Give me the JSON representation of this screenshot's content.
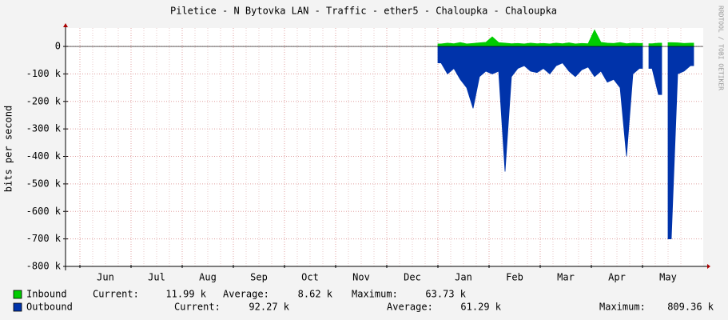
{
  "chart_data": {
    "type": "area",
    "title": "Piletice - N Bytovka LAN - Traffic - ether5 - Chaloupka - Chaloupka",
    "y_label": "bits per second",
    "watermark": "RRDTOOL / TOBI OETIKER",
    "categories": [
      "Jun",
      "Jul",
      "Aug",
      "Sep",
      "Oct",
      "Nov",
      "Dec",
      "Jan",
      "Feb",
      "Mar",
      "Apr",
      "May"
    ],
    "ylim": [
      -800000,
      67000
    ],
    "yticks": [
      0,
      {
        "value": -100000,
        "label": "-100 k"
      },
      {
        "value": -200000,
        "label": "-200 k"
      },
      {
        "value": -300000,
        "label": "-300 k"
      },
      {
        "value": -400000,
        "label": "-400 k"
      },
      {
        "value": -500000,
        "label": "-500 k"
      },
      {
        "value": -600000,
        "label": "-600 k"
      },
      {
        "value": -700000,
        "label": "-700 k"
      },
      {
        "value": -800000,
        "label": "-800 k"
      }
    ],
    "grid": true,
    "series": [
      {
        "name": "Inbound",
        "color": "#00cc00",
        "values": [
          null,
          null,
          null,
          null,
          null,
          null,
          null,
          [
            9000,
            12000,
            10000,
            14000,
            9000,
            11000,
            13000,
            15000
          ],
          [
            35000,
            14000,
            12000,
            10000,
            11000,
            9000,
            12000,
            10000
          ],
          [
            11000,
            9000,
            12000,
            10000,
            13000,
            9000,
            11000,
            10000
          ],
          [
            60000,
            15000,
            12000,
            11000,
            14000,
            10000,
            12000,
            11000
          ],
          [
            null,
            10000,
            12000,
            null,
            14000,
            13000,
            11000,
            12000
          ]
        ]
      },
      {
        "name": "Outbound",
        "color": "#0033aa",
        "values": [
          null,
          null,
          null,
          null,
          null,
          null,
          null,
          [
            -60000,
            -100000,
            -80000,
            -120000,
            -150000,
            -225000,
            -110000,
            -90000
          ],
          [
            -100000,
            -90000,
            -455000,
            -110000,
            -80000,
            -70000,
            -90000,
            -95000
          ],
          [
            -80000,
            -100000,
            -70000,
            -60000,
            -90000,
            -110000,
            -85000,
            -75000
          ],
          [
            -110000,
            -90000,
            -130000,
            -120000,
            -150000,
            -400000,
            -100000,
            -80000
          ],
          [
            null,
            -80000,
            -175000,
            null,
            -700000,
            -100000,
            -90000,
            -70000
          ]
        ]
      }
    ],
    "legend": {
      "rows": [
        [
          "Current:",
          "11.99 k",
          "Average:",
          "8.62 k",
          "Maximum:",
          "63.73 k"
        ],
        [
          "Current:",
          "92.27 k",
          "Average:",
          "61.29 k",
          "Maximum:",
          "809.36 k"
        ]
      ]
    }
  }
}
